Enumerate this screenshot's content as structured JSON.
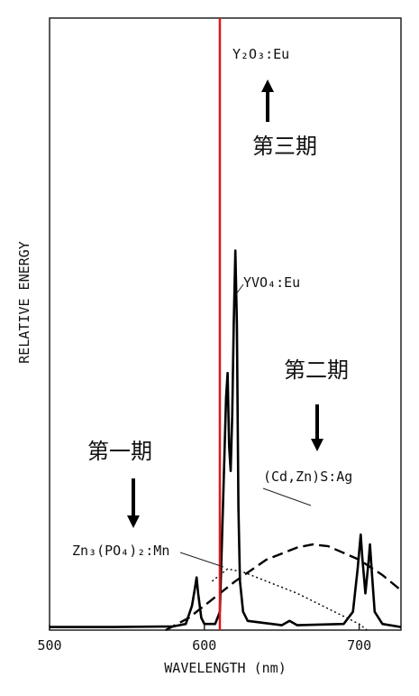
{
  "chart_data": {
    "type": "line",
    "x_label": "WAVELENGTH (nm)",
    "y_label": "RELATIVE ENERGY",
    "xlim": [
      500,
      727
    ],
    "xticks": [
      500,
      600,
      700
    ],
    "ylim": [
      0,
      1
    ],
    "reference_line": {
      "x": 610,
      "color": "#e0151b"
    },
    "series": [
      {
        "name": "YVO₄:Eu",
        "color": "#000000",
        "style": "solid",
        "x": [
          500,
          540,
          580,
          588,
          592,
          594,
          595,
          596,
          598,
          600,
          607,
          610,
          612,
          614,
          615,
          616,
          617,
          618,
          619,
          620,
          621,
          622,
          623,
          625,
          628,
          650,
          655,
          660,
          690,
          696,
          699,
          701,
          702,
          704,
          706,
          707,
          708,
          710,
          715,
          727
        ],
        "values": [
          0.005,
          0.005,
          0.006,
          0.01,
          0.04,
          0.07,
          0.086,
          0.06,
          0.02,
          0.01,
          0.01,
          0.03,
          0.2,
          0.38,
          0.42,
          0.3,
          0.26,
          0.35,
          0.5,
          0.62,
          0.5,
          0.2,
          0.08,
          0.03,
          0.015,
          0.008,
          0.015,
          0.008,
          0.01,
          0.03,
          0.1,
          0.156,
          0.12,
          0.06,
          0.11,
          0.14,
          0.1,
          0.03,
          0.01,
          0.005
        ]
      },
      {
        "name": "(Cd,Zn)S:Ag",
        "color": "#000000",
        "style": "dashed",
        "x": [
          575,
          590,
          600,
          620,
          640,
          660,
          670,
          680,
          700,
          715,
          727
        ],
        "values": [
          0.0,
          0.02,
          0.04,
          0.08,
          0.115,
          0.135,
          0.14,
          0.137,
          0.115,
          0.09,
          0.065
        ]
      },
      {
        "name": "Zn₃(PO₄)₂:Mn",
        "color": "#000000",
        "style": "dotted",
        "x": [
          605,
          615,
          625,
          640,
          660,
          680,
          700,
          705
        ],
        "values": [
          0.08,
          0.1,
          0.095,
          0.08,
          0.06,
          0.035,
          0.01,
          0.0
        ]
      }
    ],
    "annotations": [
      "Y₂O₃:Eu",
      "第三期",
      "第二期",
      "第一期"
    ]
  }
}
